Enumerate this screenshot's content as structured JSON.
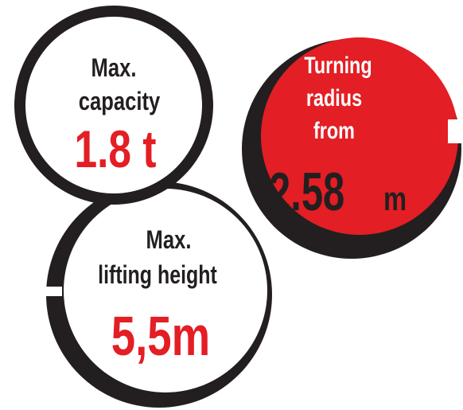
{
  "colors": {
    "dark": "#231f20",
    "red": "#e31e24",
    "white": "#ffffff"
  },
  "stats": {
    "capacity": {
      "label_line1": "Max.",
      "label_line2": "capacity",
      "value": "1.8 t"
    },
    "turning_radius": {
      "label_line1": "Turning",
      "label_line2": "radius",
      "label_line3": "from",
      "value_number": "2.58",
      "value_unit": "m"
    },
    "lifting_height": {
      "label_line1": "Max.",
      "label_line2": "lifting height",
      "value": "5,5m"
    }
  }
}
